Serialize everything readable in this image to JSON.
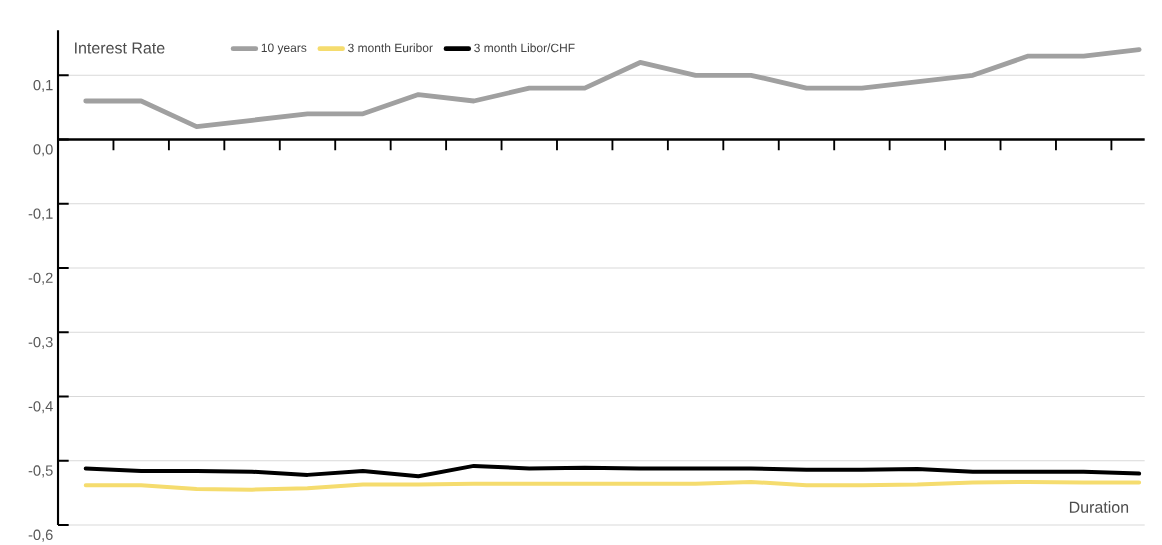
{
  "chart_data": {
    "type": "line",
    "ylabel": "Interest Rate",
    "xlabel": "Duration",
    "categories": [
      null,
      null,
      null,
      null,
      null,
      null,
      null,
      null,
      null,
      null,
      null,
      null,
      null,
      null,
      null,
      null,
      null,
      null,
      null,
      null
    ],
    "series": [
      {
        "name": "10 years",
        "color": "#a0a0a0",
        "values": [
          0.06,
          0.06,
          0.02,
          0.03,
          0.04,
          0.04,
          0.07,
          0.06,
          0.08,
          0.08,
          0.12,
          0.1,
          0.1,
          0.08,
          0.08,
          0.09,
          0.1,
          0.13,
          0.13,
          0.14
        ]
      },
      {
        "name": "3 month Euribor",
        "color": "#f5dc6e",
        "values": [
          -0.538,
          -0.538,
          -0.544,
          -0.545,
          -0.543,
          -0.537,
          -0.537,
          -0.536,
          -0.536,
          -0.536,
          -0.536,
          -0.536,
          -0.533,
          -0.538,
          -0.538,
          -0.537,
          -0.534,
          -0.533,
          -0.534,
          -0.534
        ]
      },
      {
        "name": "3 month Libor/CHF",
        "color": "#000000",
        "values": [
          -0.512,
          -0.516,
          -0.516,
          -0.517,
          -0.522,
          -0.516,
          -0.524,
          -0.508,
          -0.512,
          -0.511,
          -0.512,
          -0.512,
          -0.512,
          -0.514,
          -0.514,
          -0.513,
          -0.517,
          -0.517,
          -0.517,
          -0.52
        ]
      }
    ],
    "ylim": [
      -0.6,
      0.17
    ],
    "yticks": [
      {
        "value": 0.1,
        "label": "0,1"
      },
      {
        "value": 0.0,
        "label": "0,0"
      },
      {
        "value": -0.1,
        "label": "-0,1"
      },
      {
        "value": -0.2,
        "label": "-0,2"
      },
      {
        "value": -0.3,
        "label": "-0,3"
      },
      {
        "value": -0.4,
        "label": "-0,4"
      },
      {
        "value": -0.5,
        "label": "-0,5"
      },
      {
        "value": -0.6,
        "label": "-0,6"
      }
    ],
    "grid": "y",
    "legend": "top",
    "tick_labels": "y",
    "marker": "none",
    "line_style": "solid"
  }
}
